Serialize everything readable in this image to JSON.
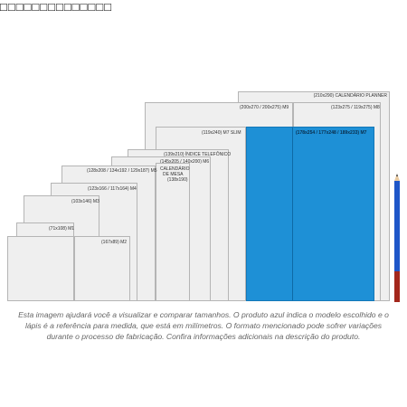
{
  "top_glyphs": "□□□□□□□□□□□□□□",
  "labels": {
    "calendario_planner": "(210x290) CALENDÁRIO PLANNER",
    "m9": "(200x270 / 200x275) M9",
    "m8": "(123x275 / 119x275) M8",
    "m7_slim": "(119x240) M7 SLIM",
    "m7": "(178x254 / 177x248 / 189x233) M7",
    "indice": "(139x210) ÍNDICE TELEFÔNICO",
    "m6": "(145x205 / 140x200) M6",
    "calendario_mesa_1": "CALENDÁRIO",
    "calendario_mesa_2": "DE MESA",
    "calendario_mesa_3": "(138x190)",
    "m5": "(128x208 / 134x192 / 129x187) M5",
    "m4": "(123x166 / 117x164) M4",
    "m3": "(103x146) M3",
    "m1": "(71x108) M1",
    "m2": "(167x89) M2"
  },
  "caption": "Esta imagem ajudará você a visualizar e comparar tamanhos. O produto azul indica o modelo escolhido e o lápis é a referência para medida, que está em milímetros. O formato mencionado pode sofrer variações durante o processo de fabricação. Confira informações adicionais na descrição do produto.",
  "colors": {
    "selected": "#1e90d6",
    "sheet": "#efefef",
    "border": "#b5b5b5"
  },
  "selected_model": "M7"
}
